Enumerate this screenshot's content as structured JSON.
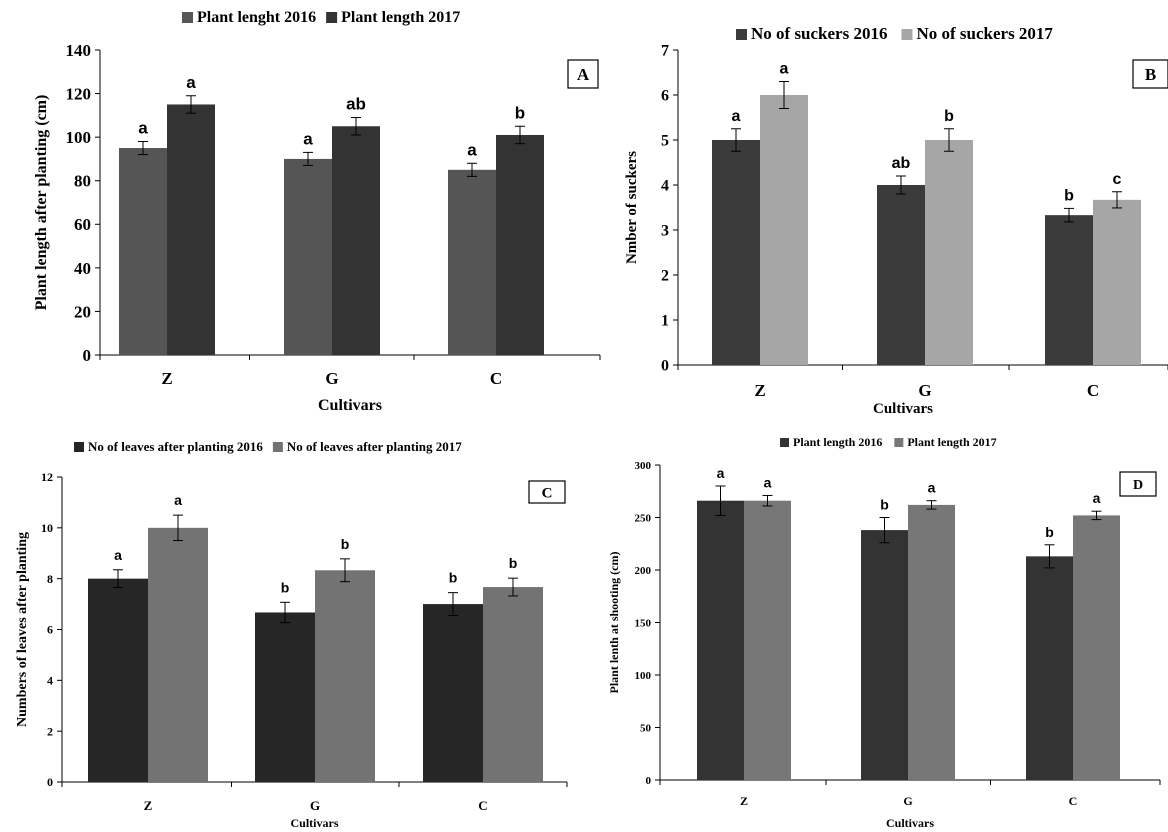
{
  "chart_data": [
    {
      "type": "bar",
      "panel": "A",
      "categories": [
        "Z",
        "G",
        "C"
      ],
      "series": [
        {
          "name": "Plant lenght 2016",
          "color": "#555555",
          "values": [
            95,
            90,
            85
          ],
          "errors": [
            3,
            3,
            3
          ],
          "sig": [
            "a",
            "a",
            "a"
          ]
        },
        {
          "name": "Plant length 2017",
          "color": "#333333",
          "values": [
            115,
            105,
            101
          ],
          "errors": [
            4,
            4,
            4
          ],
          "sig": [
            "a",
            "ab",
            "b"
          ]
        }
      ],
      "xlabel": "Cultivars",
      "ylabel": "Plant length after planting (cm)",
      "ylim": [
        0,
        140
      ],
      "yticks": [
        0,
        20,
        40,
        60,
        80,
        100,
        120,
        140
      ],
      "ytick_labels": [
        "0",
        "20",
        "40",
        "60",
        "80",
        "100",
        "120",
        "140"
      ],
      "legend": "top"
    },
    {
      "type": "bar",
      "panel": "B",
      "categories": [
        "Z",
        "G",
        "C"
      ],
      "series": [
        {
          "name": "No of suckers 2016",
          "color": "#3b3b3b",
          "values": [
            5.0,
            4.0,
            3.33
          ],
          "errors": [
            0.25,
            0.2,
            0.15
          ],
          "sig": [
            "a",
            "ab",
            "b"
          ]
        },
        {
          "name": "No of suckers 2017",
          "color": "#a6a6a6",
          "values": [
            6.0,
            5.0,
            3.67
          ],
          "errors": [
            0.3,
            0.25,
            0.18
          ],
          "sig": [
            "a",
            "b",
            "c"
          ]
        }
      ],
      "xlabel": "Cultivars",
      "ylabel": "Nmber of suckers",
      "ylim": [
        0,
        7
      ],
      "yticks": [
        0,
        1,
        2,
        3,
        4,
        5,
        6,
        7
      ],
      "ytick_labels": [
        "0",
        "1",
        "2",
        "3",
        "4",
        "5",
        "6",
        "7"
      ],
      "legend": "top"
    },
    {
      "type": "bar",
      "panel": "C",
      "categories": [
        "Z",
        "G",
        "C"
      ],
      "series": [
        {
          "name": "No of leaves after planting 2016",
          "color": "#262626",
          "values": [
            8.0,
            6.67,
            7.0
          ],
          "errors": [
            0.35,
            0.4,
            0.45
          ],
          "sig": [
            "a",
            "b",
            "b"
          ]
        },
        {
          "name": "No of leaves after planting 2017",
          "color": "#737373",
          "values": [
            10.0,
            8.33,
            7.67
          ],
          "errors": [
            0.5,
            0.45,
            0.35
          ],
          "sig": [
            "a",
            "b",
            "b"
          ]
        }
      ],
      "xlabel": "Cultivars",
      "ylabel": "Numbers of leaves after planting",
      "ylim": [
        0,
        12
      ],
      "yticks": [
        0,
        2,
        4,
        6,
        8,
        10,
        12
      ],
      "ytick_labels": [
        "0",
        "2",
        "4",
        "6",
        "8",
        "10",
        "12"
      ],
      "legend": "top"
    },
    {
      "type": "bar",
      "panel": "D",
      "categories": [
        "Z",
        "G",
        "C"
      ],
      "series": [
        {
          "name": "Plant length 2016",
          "color": "#333333",
          "values": [
            266,
            238,
            213
          ],
          "errors": [
            14,
            12,
            11
          ],
          "sig": [
            "a",
            "b",
            "b"
          ]
        },
        {
          "name": "Plant length 2017",
          "color": "#777777",
          "values": [
            266,
            262,
            252
          ],
          "errors": [
            5,
            4,
            4
          ],
          "sig": [
            "a",
            "a",
            "a"
          ]
        }
      ],
      "xlabel": "Cultivars",
      "ylabel": "Plant lenth at shooting (cm)",
      "ylim": [
        0,
        300
      ],
      "yticks": [
        0,
        50,
        100,
        150,
        200,
        250,
        300
      ],
      "ytick_labels": [
        "0",
        "50",
        "100",
        "150",
        "200",
        "250",
        "300"
      ],
      "legend": "top"
    }
  ]
}
